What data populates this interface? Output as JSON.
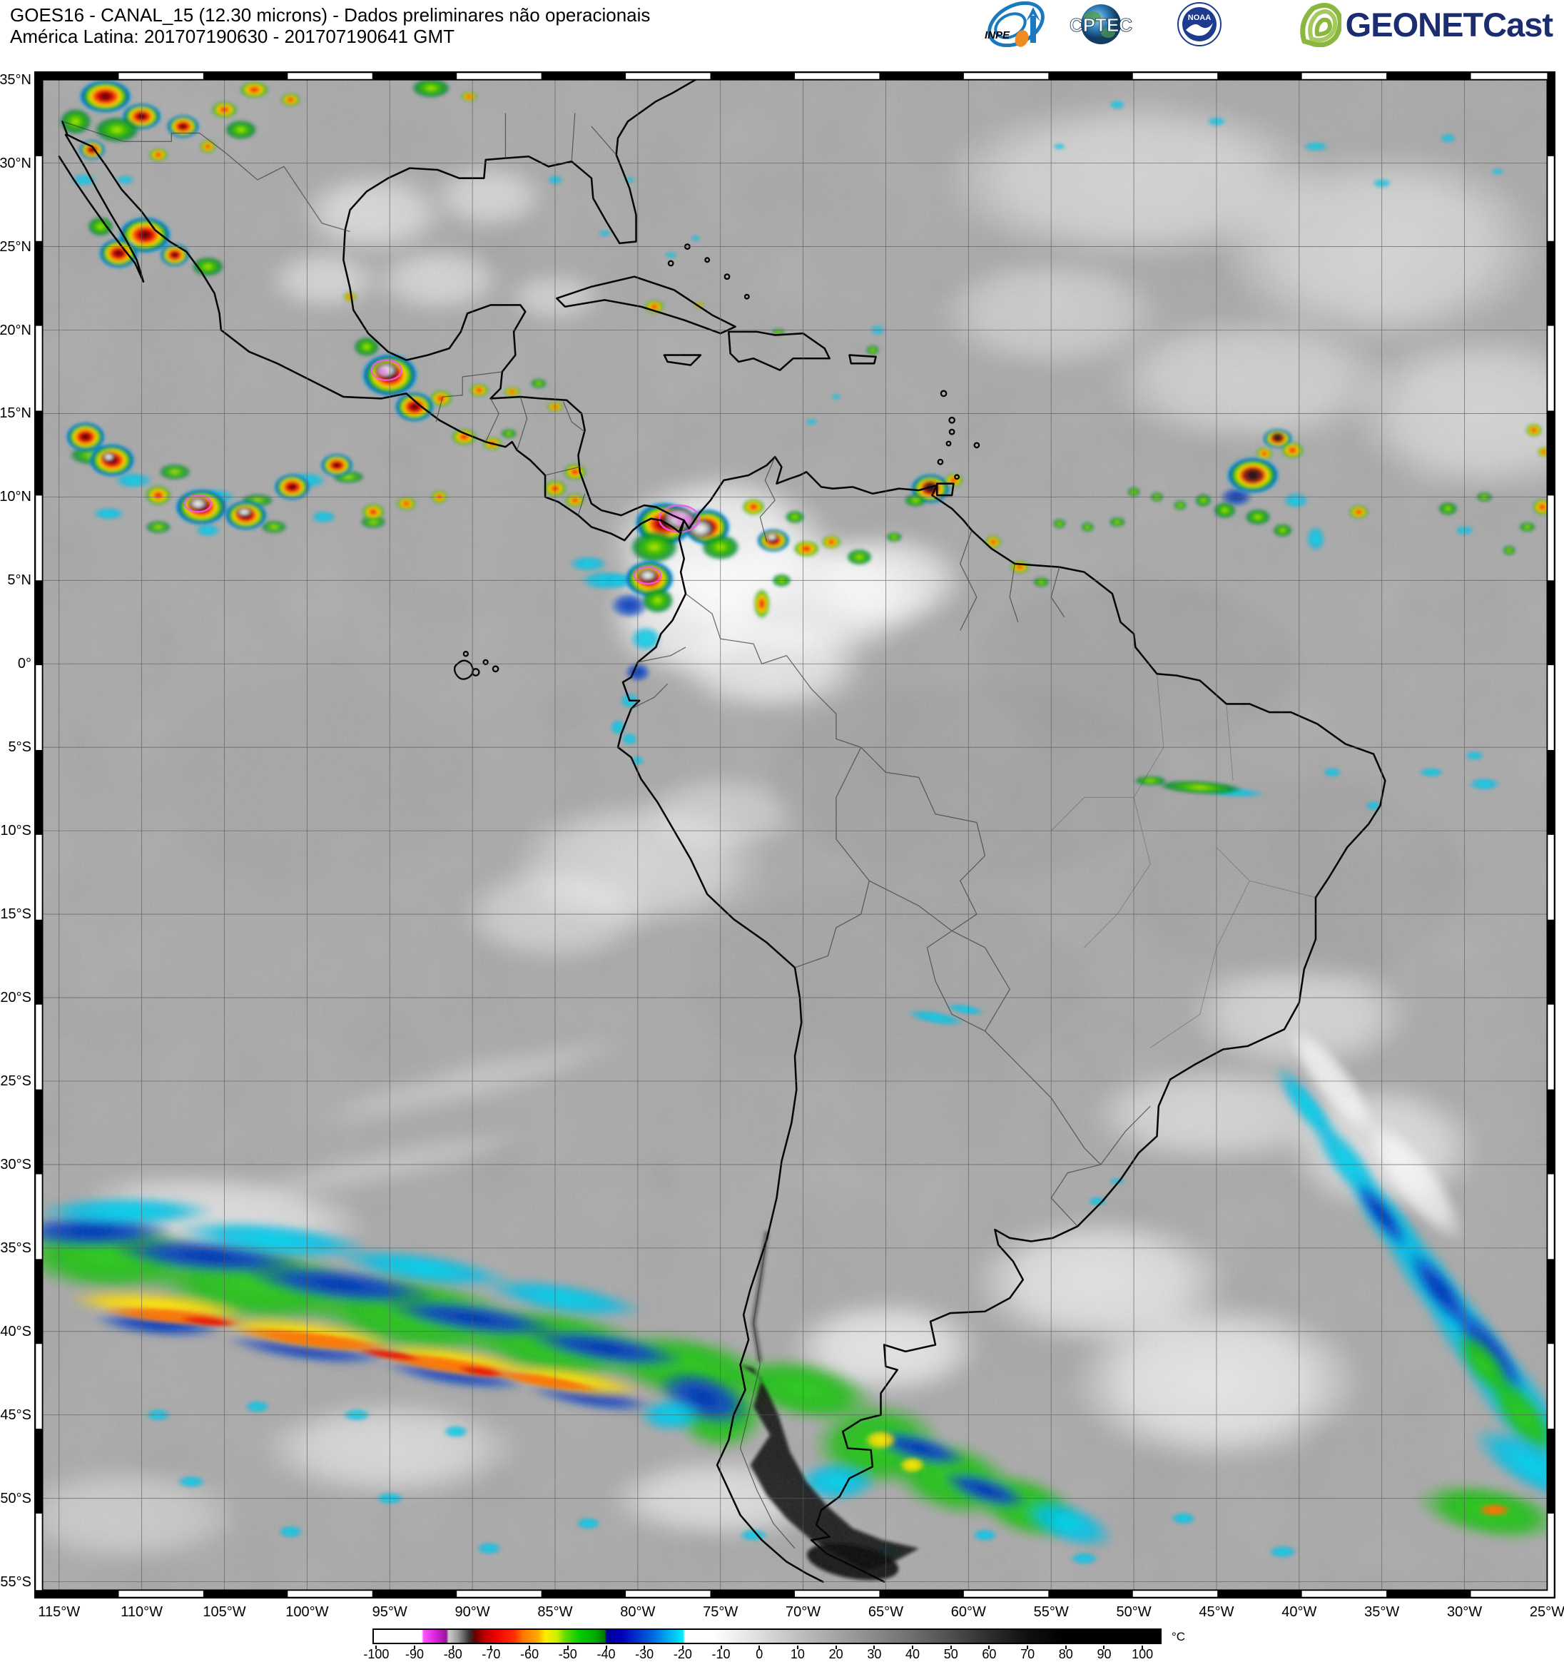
{
  "header": {
    "title_line1": "GOES16 - CANAL_15 (12.30 microns) - Dados preliminares não operacionais",
    "title_line2": "América Latina: 201707190630 - 201707190641 GMT"
  },
  "logos": {
    "inpe": "INPE",
    "cptec": "CPTEC",
    "noaa": "NOAA",
    "geonetcast": "GEONETCast"
  },
  "colors": {
    "geonetcast_navy": "#1b2d6e",
    "geonetcast_green": "#8ab83e",
    "noaa_blue": "#1d3c8f",
    "inpe_blue": "#1a7abf",
    "map_background_gray": "#a9a9a9"
  },
  "map": {
    "grid_step_deg": 5,
    "lat_ticks": [
      {
        "v": 35,
        "label": "35°N"
      },
      {
        "v": 30,
        "label": "30°N"
      },
      {
        "v": 25,
        "label": "25°N"
      },
      {
        "v": 20,
        "label": "20°N"
      },
      {
        "v": 15,
        "label": "15°N"
      },
      {
        "v": 10,
        "label": "10°N"
      },
      {
        "v": 5,
        "label": "5°N"
      },
      {
        "v": 0,
        "label": "0°"
      },
      {
        "v": -5,
        "label": "5°S"
      },
      {
        "v": -10,
        "label": "10°S"
      },
      {
        "v": -15,
        "label": "15°S"
      },
      {
        "v": -20,
        "label": "20°S"
      },
      {
        "v": -25,
        "label": "25°S"
      },
      {
        "v": -30,
        "label": "30°S"
      },
      {
        "v": -35,
        "label": "35°S"
      },
      {
        "v": -40,
        "label": "40°S"
      },
      {
        "v": -45,
        "label": "45°S"
      },
      {
        "v": -50,
        "label": "50°S"
      },
      {
        "v": -55,
        "label": "55°S"
      }
    ],
    "lon_ticks": [
      {
        "v": -115,
        "label": "115°W"
      },
      {
        "v": -110,
        "label": "110°W"
      },
      {
        "v": -105,
        "label": "105°W"
      },
      {
        "v": -100,
        "label": "100°W"
      },
      {
        "v": -95,
        "label": "95°W"
      },
      {
        "v": -90,
        "label": "90°W"
      },
      {
        "v": -85,
        "label": "85°W"
      },
      {
        "v": -80,
        "label": "80°W"
      },
      {
        "v": -75,
        "label": "75°W"
      },
      {
        "v": -70,
        "label": "70°W"
      },
      {
        "v": -65,
        "label": "65°W"
      },
      {
        "v": -60,
        "label": "60°W"
      },
      {
        "v": -55,
        "label": "55°W"
      },
      {
        "v": -50,
        "label": "50°W"
      },
      {
        "v": -45,
        "label": "45°W"
      },
      {
        "v": -40,
        "label": "40°W"
      },
      {
        "v": -35,
        "label": "35°W"
      },
      {
        "v": -30,
        "label": "30°W"
      },
      {
        "v": -25,
        "label": "25°W"
      }
    ]
  },
  "colorbar": {
    "unit": "°C",
    "min": -100,
    "max": 100,
    "ticks": [
      {
        "v": -100,
        "label": "-100"
      },
      {
        "v": -90,
        "label": "-90"
      },
      {
        "v": -80,
        "label": "-80"
      },
      {
        "v": -70,
        "label": "-70"
      },
      {
        "v": -60,
        "label": "-60"
      },
      {
        "v": -50,
        "label": "-50"
      },
      {
        "v": -40,
        "label": "-40"
      },
      {
        "v": -30,
        "label": "-30"
      },
      {
        "v": -20,
        "label": "-20"
      },
      {
        "v": -10,
        "label": "-10"
      },
      {
        "v": 0,
        "label": "0"
      },
      {
        "v": 10,
        "label": "10"
      },
      {
        "v": 20,
        "label": "20"
      },
      {
        "v": 30,
        "label": "30"
      },
      {
        "v": 40,
        "label": "40"
      },
      {
        "v": 50,
        "label": "50"
      },
      {
        "v": 60,
        "label": "60"
      },
      {
        "v": 70,
        "label": "70"
      },
      {
        "v": 80,
        "label": "80"
      },
      {
        "v": 90,
        "label": "90"
      },
      {
        "v": 100,
        "label": "100"
      }
    ],
    "gradient": [
      {
        "v": -101,
        "c": "#ffffff"
      },
      {
        "v": -88.5,
        "c": "#ffffff"
      },
      {
        "v": -88,
        "c": "#ff55ff"
      },
      {
        "v": -85,
        "c": "#dd22dd"
      },
      {
        "v": -82,
        "c": "#991699"
      },
      {
        "v": -81.4,
        "c": "#cccccc"
      },
      {
        "v": -79,
        "c": "#9a9a9a"
      },
      {
        "v": -76,
        "c": "#333333"
      },
      {
        "v": -74.5,
        "c": "#660000"
      },
      {
        "v": -72,
        "c": "#bb0000"
      },
      {
        "v": -69,
        "c": "#ee0000"
      },
      {
        "v": -64,
        "c": "#ff3300"
      },
      {
        "v": -62,
        "c": "#ff7700"
      },
      {
        "v": -58,
        "c": "#ffaa00"
      },
      {
        "v": -56,
        "c": "#ffee00"
      },
      {
        "v": -53,
        "c": "#ccee00"
      },
      {
        "v": -51,
        "c": "#66dd00"
      },
      {
        "v": -47,
        "c": "#00cc00"
      },
      {
        "v": -43,
        "c": "#00aa00"
      },
      {
        "v": -40.5,
        "c": "#007700"
      },
      {
        "v": -40,
        "c": "#000099"
      },
      {
        "v": -36,
        "c": "#0000bb"
      },
      {
        "v": -32,
        "c": "#0033cc"
      },
      {
        "v": -28,
        "c": "#0066dd"
      },
      {
        "v": -25,
        "c": "#0099ee"
      },
      {
        "v": -22,
        "c": "#00ccf5"
      },
      {
        "v": -20,
        "c": "#00eeff"
      },
      {
        "v": -19.5,
        "c": "#ffffff"
      },
      {
        "v": -12,
        "c": "#ffffff"
      },
      {
        "v": 0,
        "c": "#dddddd"
      },
      {
        "v": 10,
        "c": "#c0c0c0"
      },
      {
        "v": 20,
        "c": "#a5a5a5"
      },
      {
        "v": 30,
        "c": "#8a8a8a"
      },
      {
        "v": 40,
        "c": "#6e6e6e"
      },
      {
        "v": 50,
        "c": "#4f4f4f"
      },
      {
        "v": 60,
        "c": "#2e2e2e"
      },
      {
        "v": 70,
        "c": "#101010"
      },
      {
        "v": 80,
        "c": "#000000"
      },
      {
        "v": 105,
        "c": "#000000"
      }
    ]
  }
}
